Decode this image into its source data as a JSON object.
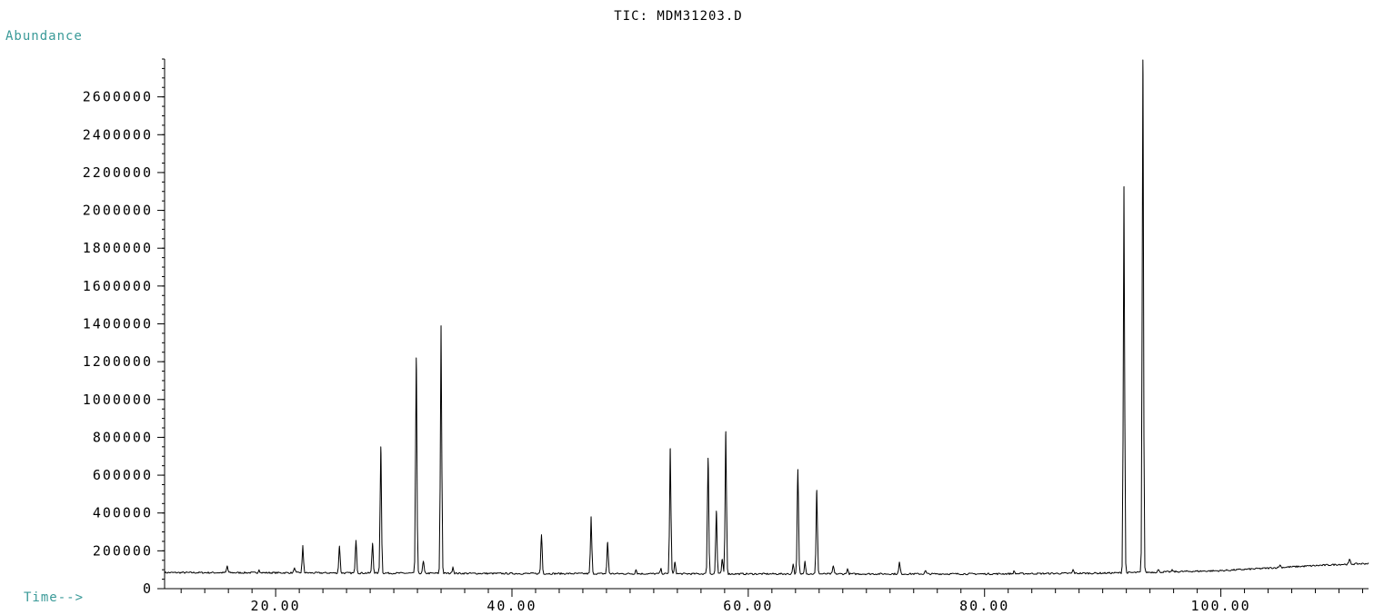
{
  "chart_data": {
    "type": "line",
    "title": "TIC: MDM31203.D",
    "ylabel": "Abundance",
    "xlabel": "Time-->",
    "xlim": [
      10.6,
      112.5
    ],
    "ylim": [
      0,
      2800000
    ],
    "x_ticks": [
      20,
      40,
      60,
      80,
      100
    ],
    "x_tick_labels": [
      "20.00",
      "40.00",
      "60.00",
      "80.00",
      "100.00"
    ],
    "x_minor_step": 2,
    "y_ticks": [
      0,
      200000,
      400000,
      600000,
      800000,
      1000000,
      1200000,
      1400000,
      1600000,
      1800000,
      2000000,
      2200000,
      2400000,
      2600000
    ],
    "y_tick_labels": [
      "0",
      "200000",
      "400000",
      "600000",
      "800000",
      "1000000",
      "1200000",
      "1400000",
      "1600000",
      "1800000",
      "2000000",
      "2200000",
      "2400000",
      "2600000"
    ],
    "y_minor_step": 50000,
    "baseline": [
      [
        10.6,
        85000
      ],
      [
        20.0,
        84000
      ],
      [
        30.0,
        82000
      ],
      [
        40.0,
        80000
      ],
      [
        50.0,
        79000
      ],
      [
        60.0,
        78000
      ],
      [
        70.0,
        78000
      ],
      [
        80.0,
        78000
      ],
      [
        90.0,
        82000
      ],
      [
        95.0,
        88000
      ],
      [
        100.0,
        95000
      ],
      [
        105.0,
        112000
      ],
      [
        110.0,
        128000
      ],
      [
        112.5,
        133000
      ]
    ],
    "peaks": [
      {
        "rt": 15.9,
        "abundance": 120000
      },
      {
        "rt": 18.6,
        "abundance": 100000
      },
      {
        "rt": 21.6,
        "abundance": 110000
      },
      {
        "rt": 22.3,
        "abundance": 225000
      },
      {
        "rt": 25.4,
        "abundance": 225000
      },
      {
        "rt": 26.8,
        "abundance": 255000
      },
      {
        "rt": 28.2,
        "abundance": 240000
      },
      {
        "rt": 28.9,
        "abundance": 750000
      },
      {
        "rt": 31.9,
        "abundance": 1220000
      },
      {
        "rt": 32.5,
        "abundance": 145000
      },
      {
        "rt": 34.0,
        "abundance": 1390000
      },
      {
        "rt": 35.0,
        "abundance": 115000
      },
      {
        "rt": 42.5,
        "abundance": 285000
      },
      {
        "rt": 46.7,
        "abundance": 380000
      },
      {
        "rt": 48.1,
        "abundance": 245000
      },
      {
        "rt": 50.5,
        "abundance": 100000
      },
      {
        "rt": 52.6,
        "abundance": 105000
      },
      {
        "rt": 53.4,
        "abundance": 740000
      },
      {
        "rt": 53.8,
        "abundance": 140000
      },
      {
        "rt": 56.6,
        "abundance": 690000
      },
      {
        "rt": 57.3,
        "abundance": 410000
      },
      {
        "rt": 57.8,
        "abundance": 155000
      },
      {
        "rt": 58.1,
        "abundance": 830000
      },
      {
        "rt": 63.8,
        "abundance": 130000
      },
      {
        "rt": 64.2,
        "abundance": 630000
      },
      {
        "rt": 64.8,
        "abundance": 145000
      },
      {
        "rt": 65.8,
        "abundance": 520000
      },
      {
        "rt": 67.2,
        "abundance": 120000
      },
      {
        "rt": 68.4,
        "abundance": 105000
      },
      {
        "rt": 72.8,
        "abundance": 140000
      },
      {
        "rt": 75.0,
        "abundance": 95000
      },
      {
        "rt": 82.5,
        "abundance": 92000
      },
      {
        "rt": 87.5,
        "abundance": 100000
      },
      {
        "rt": 91.8,
        "abundance": 2125000
      },
      {
        "rt": 93.4,
        "abundance": 2795000
      },
      {
        "rt": 94.7,
        "abundance": 100000
      },
      {
        "rt": 95.9,
        "abundance": 98000
      },
      {
        "rt": 105.0,
        "abundance": 125000
      },
      {
        "rt": 110.9,
        "abundance": 155000
      }
    ]
  }
}
